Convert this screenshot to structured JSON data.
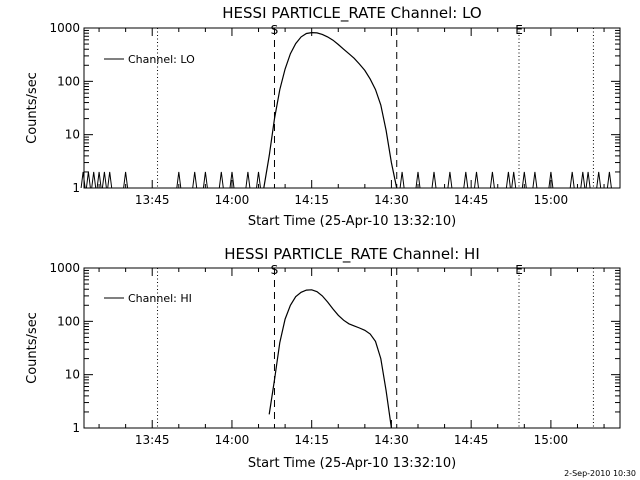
{
  "footer": {
    "timestamp": "2-Sep-2010 10:30"
  },
  "chart_data": [
    {
      "type": "line",
      "title": "HESSI PARTICLE_RATE Channel: LO",
      "xlabel": "Start Time (25-Apr-10 13:32:10)",
      "ylabel": "Counts/sec",
      "yscale": "log",
      "ylim": [
        1,
        1000
      ],
      "xlim": [
        "13:32:10",
        "15:13:00"
      ],
      "x_ticks": [
        "13:45",
        "14:00",
        "14:15",
        "14:30",
        "14:45",
        "15:00"
      ],
      "y_ticks": [
        "1",
        "10",
        "100",
        "1000"
      ],
      "legend": {
        "position": "top-left",
        "entries": [
          "Channel: LO"
        ]
      },
      "markers": [
        {
          "label": "S",
          "time": "14:08",
          "style": "dashed"
        },
        {
          "label": "",
          "time": "14:31",
          "style": "dashed"
        },
        {
          "label": "",
          "time": "13:46",
          "style": "dotted"
        },
        {
          "label": "E",
          "time": "14:54",
          "style": "dotted"
        },
        {
          "label": "",
          "time": "15:08",
          "style": "dotted"
        }
      ],
      "series": [
        {
          "name": "Channel: LO",
          "x": [
            "14:06",
            "14:07",
            "14:08",
            "14:09",
            "14:10",
            "14:11",
            "14:12",
            "14:13",
            "14:14",
            "14:15",
            "14:16",
            "14:17",
            "14:18",
            "14:19",
            "14:20",
            "14:21",
            "14:22",
            "14:23",
            "14:24",
            "14:25",
            "14:26",
            "14:27",
            "14:28",
            "14:29",
            "14:30",
            "14:31"
          ],
          "y": [
            1,
            4,
            20,
            70,
            170,
            330,
            510,
            680,
            790,
            820,
            810,
            760,
            680,
            590,
            490,
            400,
            330,
            270,
            210,
            160,
            110,
            70,
            36,
            12,
            3,
            1
          ],
          "noise_spikes": [
            "13:32",
            "13:33",
            "13:34",
            "13:35",
            "13:36",
            "13:37",
            "13:40",
            "13:50",
            "13:53",
            "13:55",
            "13:58",
            "14:00",
            "14:03",
            "14:05",
            "14:32",
            "14:35",
            "14:38",
            "14:41",
            "14:44",
            "14:46",
            "14:49",
            "14:52",
            "14:53",
            "14:55",
            "14:57",
            "15:00",
            "15:04",
            "15:06",
            "15:07",
            "15:09",
            "15:11"
          ]
        }
      ]
    },
    {
      "type": "line",
      "title": "HESSI PARTICLE_RATE Channel: HI",
      "xlabel": "Start Time (25-Apr-10 13:32:10)",
      "ylabel": "Counts/sec",
      "yscale": "log",
      "ylim": [
        1,
        1000
      ],
      "xlim": [
        "13:32:10",
        "15:13:00"
      ],
      "x_ticks": [
        "13:45",
        "14:00",
        "14:15",
        "14:30",
        "14:45",
        "15:00"
      ],
      "y_ticks": [
        "1",
        "10",
        "100",
        "1000"
      ],
      "legend": {
        "position": "top-left",
        "entries": [
          "Channel: HI"
        ]
      },
      "markers": [
        {
          "label": "S",
          "time": "14:08",
          "style": "dashed"
        },
        {
          "label": "",
          "time": "14:31",
          "style": "dashed"
        },
        {
          "label": "",
          "time": "13:46",
          "style": "dotted"
        },
        {
          "label": "E",
          "time": "14:54",
          "style": "dotted"
        },
        {
          "label": "",
          "time": "15:08",
          "style": "dotted"
        }
      ],
      "series": [
        {
          "name": "Channel: HI",
          "x": [
            "14:07",
            "14:08",
            "14:09",
            "14:10",
            "14:11",
            "14:12",
            "14:13",
            "14:14",
            "14:15",
            "14:16",
            "14:17",
            "14:18",
            "14:19",
            "14:20",
            "14:21",
            "14:22",
            "14:23",
            "14:24",
            "14:25",
            "14:26",
            "14:27",
            "14:28",
            "14:29",
            "14:30"
          ],
          "y": [
            1.8,
            8,
            40,
            110,
            200,
            290,
            350,
            385,
            390,
            360,
            300,
            230,
            170,
            130,
            105,
            90,
            82,
            75,
            68,
            58,
            42,
            20,
            5,
            1
          ]
        }
      ]
    }
  ]
}
